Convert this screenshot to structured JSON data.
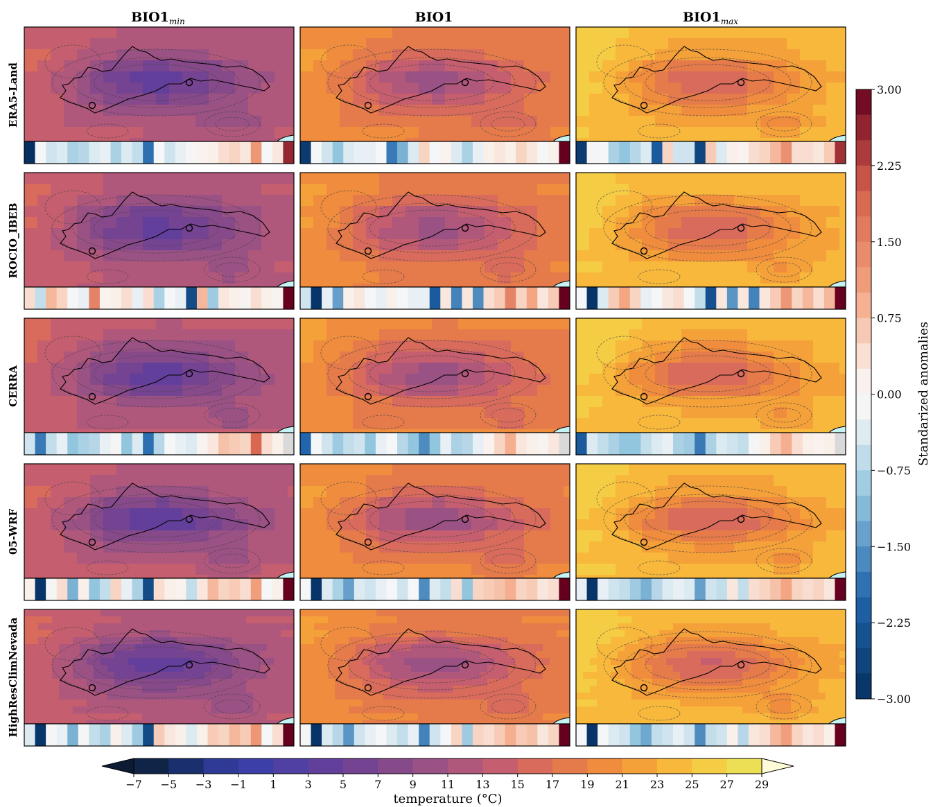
{
  "columns": [
    {
      "label": "BIO1",
      "subscript": "min"
    },
    {
      "label": "BIO1",
      "subscript": ""
    },
    {
      "label": "BIO1",
      "subscript": "max"
    }
  ],
  "rows": [
    "ERA5-Land",
    "ROCIO_IBEB",
    "CERRA",
    "05-WRF",
    "HighResClimNevada"
  ],
  "chart_data": [
    {
      "type": "heatmap",
      "description_of_grid": "5 rows (datasets) x 3 columns (BIO1 min, BIO1, BIO1 max) of temperature maps",
      "colorbar": {
        "label": "temperature (°C)",
        "ticks": [
          "−7",
          "−5",
          "−3",
          "−1",
          "1",
          "3",
          "5",
          "7",
          "9",
          "11",
          "13",
          "15",
          "17",
          "19",
          "21",
          "23",
          "25",
          "27",
          "29"
        ],
        "range": [
          -7,
          29
        ],
        "extend": "both",
        "colors": [
          "#0c1b33",
          "#0f2447",
          "#1a2f6e",
          "#2e3a96",
          "#3d3fa8",
          "#5040a3",
          "#633f9c",
          "#744392",
          "#86498a",
          "#9a5184",
          "#b0577c",
          "#c55e6e",
          "#d86b5c",
          "#e57a4b",
          "#f08c3d",
          "#f5a13a",
          "#f7b83c",
          "#f5cd45",
          "#ecdf55",
          "#e5f560"
        ]
      }
    },
    {
      "type": "heatmap",
      "description_of_strips": "standardized anomaly strips below each map, one cell per year",
      "colorbar": {
        "label": "Standarized anomalies",
        "ticks": [
          "3.00",
          "2.25",
          "1.50",
          "0.75",
          "0.00",
          "−0.75",
          "−1.50",
          "−2.25",
          "−3.00"
        ],
        "range": [
          -3,
          3
        ]
      },
      "strips": [
        [
          [
            -3,
            -0.2,
            -0.5,
            -0.4,
            -0.8,
            -0.7,
            -0.4,
            -0.3,
            -0.8,
            -0.4,
            -0.6,
            -1.9,
            -0.2,
            -0.5,
            -0.3,
            -0.1,
            0.1,
            0.2,
            0.4,
            0.5,
            0.3,
            1.2,
            -0.2,
            0.3,
            2.6
          ],
          [
            -2.8,
            -0.2,
            -0.5,
            -1.0,
            -0.4,
            -0.3,
            -0.3,
            -0.2,
            -1.8,
            -1.2,
            -0.4,
            0.5,
            -0.2,
            0.1,
            -0.4,
            -0.8,
            -0.3,
            0.2,
            0.3,
            0.2,
            0.5,
            0.3,
            -0.2,
            0.2,
            3.0
          ],
          [
            -2.8,
            -0.1,
            -0.2,
            -0.8,
            -1.0,
            -0.7,
            -0.4,
            -2.2,
            0.5,
            -0.5,
            -0.5,
            -2.6,
            0.6,
            -0.4,
            0.2,
            0.1,
            0.4,
            0.5,
            0.8,
            1.3,
            0.4,
            0.4,
            0.3,
            0.6,
            2.5
          ]
        ],
        [
          [
            0.4,
            -0.6,
            0.8,
            0.5,
            -0.2,
            -0.3,
            1.5,
            0.1,
            0.2,
            0.4,
            -0.3,
            0.4,
            -0.8,
            -0.2,
            -0.3,
            -2.5,
            0.8,
            -0.9,
            0.3,
            0.2,
            0.0,
            0.4,
            0.2,
            0.0,
            3.0
          ],
          [
            -0.5,
            -2.9,
            -0.3,
            -1.4,
            0.2,
            0.3,
            -0.2,
            -0.3,
            0.2,
            -0.2,
            -0.3,
            -0.3,
            -2.2,
            0.3,
            -1.7,
            0.3,
            -1.6,
            0.4,
            0.6,
            1.5,
            0.5,
            1.0,
            0.3,
            0.6,
            3.0
          ],
          [
            -0.2,
            -2.9,
            -0.4,
            0.6,
            1.0,
            0.5,
            -0.3,
            -0.2,
            0.3,
            0.4,
            -0.2,
            -0.6,
            -2.4,
            0.3,
            -1.5,
            0.3,
            -1.7,
            0.3,
            0.6,
            1.2,
            0.5,
            0.8,
            0.4,
            0.8,
            3.0
          ]
        ],
        [
          [
            -0.5,
            -1.8,
            -0.6,
            -0.3,
            -1.0,
            -0.8,
            -0.7,
            -0.3,
            -0.1,
            -1.0,
            -0.4,
            -1.9,
            -0.7,
            -0.2,
            -0.3,
            -0.4,
            0.1,
            0.3,
            0.7,
            0.6,
            0.5,
            1.9,
            0.4,
            0.2,
            0.0
          ],
          [
            -2.0,
            -0.2,
            -0.5,
            -0.9,
            -0.6,
            -0.5,
            -1.0,
            -0.3,
            -0.2,
            -0.7,
            -1.0,
            -1.6,
            -1.0,
            -0.3,
            -0.8,
            -0.7,
            -0.3,
            0.1,
            0.5,
            0.9,
            0.3,
            0.2,
            0.0,
            0.3,
            0.0
          ],
          [
            -2.2,
            -0.4,
            -0.6,
            -0.8,
            -1.0,
            -1.0,
            -0.6,
            -0.4,
            -0.3,
            -0.8,
            -0.9,
            -1.8,
            -0.8,
            -0.4,
            -0.5,
            -0.6,
            -0.1,
            0.2,
            0.6,
            0.9,
            0.4,
            0.2,
            0.1,
            0.2,
            0.0
          ]
        ],
        [
          [
            0.2,
            -2.9,
            -0.1,
            0.4,
            -1.2,
            0.2,
            -1.0,
            -0.6,
            0.5,
            -0.3,
            -0.8,
            -2.5,
            0.4,
            0.2,
            0.1,
            -0.6,
            0.3,
            0.8,
            0.5,
            0.6,
            0.4,
            1.1,
            -0.2,
            0.2,
            3.0
          ],
          [
            -0.2,
            -2.9,
            -0.4,
            -0.8,
            -1.4,
            -0.4,
            -0.5,
            -0.3,
            -0.2,
            -0.5,
            -0.2,
            -1.6,
            -0.4,
            -0.6,
            0.4,
            -1.0,
            0.5,
            0.6,
            0.7,
            0.9,
            0.5,
            0.6,
            0.3,
            0.4,
            3.0
          ],
          [
            -0.3,
            -2.9,
            -0.3,
            -0.5,
            -0.6,
            -0.9,
            -1.2,
            -0.7,
            -0.4,
            -0.3,
            -0.4,
            -1.4,
            -0.5,
            -0.6,
            0.3,
            -0.6,
            0.4,
            0.5,
            0.7,
            1.0,
            0.5,
            0.4,
            0.5,
            0.3,
            3.0
          ]
        ],
        [
          [
            -0.4,
            -2.9,
            -0.1,
            -0.3,
            -1.2,
            -0.1,
            -0.6,
            -0.8,
            0.2,
            -0.4,
            -0.9,
            -2.5,
            0.6,
            0.3,
            0.2,
            -0.4,
            0.2,
            0.6,
            0.5,
            0.8,
            0.6,
            1.2,
            -0.2,
            0.4,
            3.0
          ],
          [
            -0.1,
            -2.9,
            -0.4,
            -0.7,
            -1.5,
            -0.5,
            -0.3,
            -0.2,
            -0.4,
            -0.6,
            -0.3,
            -1.7,
            -0.5,
            -0.2,
            0.5,
            -0.9,
            0.5,
            0.4,
            0.6,
            0.9,
            0.6,
            0.7,
            0.3,
            0.5,
            3.0
          ],
          [
            -0.2,
            -2.9,
            -0.2,
            -0.4,
            -0.5,
            -1.0,
            -1.3,
            -0.6,
            -0.5,
            -0.3,
            -0.5,
            -1.6,
            -0.6,
            -0.5,
            0.2,
            -0.7,
            0.3,
            0.4,
            0.8,
            1.1,
            0.5,
            0.3,
            0.4,
            0.2,
            3.0
          ]
        ]
      ]
    }
  ]
}
